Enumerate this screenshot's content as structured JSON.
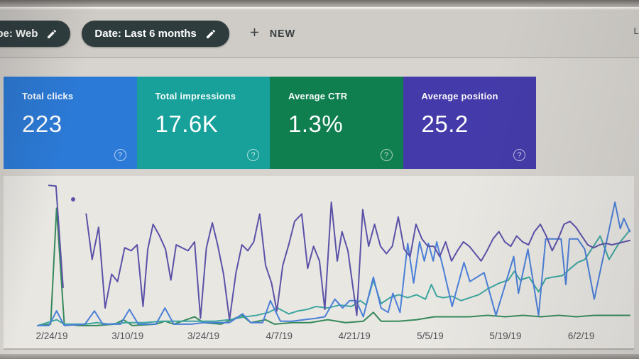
{
  "toolbar": {
    "chips": [
      {
        "label": "type: Web",
        "icon": "edit-icon",
        "clipped_left": true
      },
      {
        "label": "Date: Last 6 months",
        "icon": "edit-icon"
      }
    ],
    "new_button": {
      "label": "NEW",
      "icon": "add-icon"
    },
    "right_fragment": "La"
  },
  "summary_cards": [
    {
      "label": "Total clicks",
      "value": "223",
      "color": "#2b7ad7",
      "help_icon": "?"
    },
    {
      "label": "Total impressions",
      "value": "17.6K",
      "color": "#17a19a",
      "help_icon": "?"
    },
    {
      "label": "Average CTR",
      "value": "1.3%",
      "color": "#0f7f50",
      "help_icon": "?"
    },
    {
      "label": "Average position",
      "value": "25.2",
      "color": "#443aa9",
      "help_icon": "?"
    }
  ],
  "icons": {
    "edit-icon": "pencil glyph on filter chips",
    "add-icon": "plus glyph on NEW button",
    "help-icon": "circled question mark on each metric card"
  },
  "chart_data": {
    "type": "line",
    "title": "",
    "x_axis_labels": [
      {
        "text": "2/24/19",
        "x": 2.4
      },
      {
        "text": "3/10/19",
        "x": 15.2
      },
      {
        "text": "3/24/19",
        "x": 28.0
      },
      {
        "text": "4/7/19",
        "x": 40.8
      },
      {
        "text": "4/21/19",
        "x": 53.5
      },
      {
        "text": "5/5/19",
        "x": 66.3
      },
      {
        "text": "5/19/19",
        "x": 79.0
      },
      {
        "text": "6/2/19",
        "x": 91.8
      }
    ],
    "y_scale_note": "no y-axis shown on screen; point values are percent of plot height measured from top (0 = top, 100 = baseline), each series independently normalized as rendered",
    "grid": "off",
    "legend": "colors match the four summary cards",
    "series": [
      {
        "id": "ctr",
        "name": "Average CTR",
        "color": "#35895c",
        "segments": [
          [
            [
              0,
              99
            ],
            [
              2.2,
              98
            ],
            [
              3.2,
              19
            ],
            [
              4.5,
              98
            ],
            [
              7,
              99
            ],
            [
              10,
              99
            ],
            [
              13,
              98
            ],
            [
              14.5,
              95
            ],
            [
              16,
              99
            ],
            [
              20,
              98
            ],
            [
              21.5,
              96
            ],
            [
              23,
              98
            ],
            [
              26.5,
              93
            ],
            [
              28,
              97
            ],
            [
              31,
              98
            ],
            [
              34.5,
              92
            ],
            [
              36,
              97
            ],
            [
              38.5,
              95
            ],
            [
              40,
              98
            ],
            [
              43,
              97
            ],
            [
              46,
              97
            ],
            [
              49,
              95
            ],
            [
              52,
              97
            ],
            [
              55,
              96
            ],
            [
              56.7,
              90
            ],
            [
              58,
              96
            ],
            [
              61,
              96
            ],
            [
              64,
              95
            ],
            [
              67,
              93
            ],
            [
              70,
              93
            ],
            [
              73,
              93
            ],
            [
              76,
              92
            ],
            [
              79,
              93
            ],
            [
              82,
              92
            ],
            [
              85,
              93
            ],
            [
              88,
              92
            ],
            [
              91,
              93
            ],
            [
              94,
              92
            ],
            [
              97,
              92
            ],
            [
              100,
              92
            ]
          ]
        ],
        "dots": []
      },
      {
        "id": "impressions",
        "name": "Total impressions",
        "color": "#3da5a0",
        "segments": [
          [
            [
              0,
              99
            ],
            [
              3.2,
              95
            ],
            [
              4.5,
              98
            ],
            [
              8,
              98
            ],
            [
              10,
              97
            ],
            [
              12,
              98
            ],
            [
              15,
              97
            ],
            [
              18,
              97
            ],
            [
              21,
              96
            ],
            [
              24,
              96
            ],
            [
              26,
              96
            ],
            [
              28,
              96
            ],
            [
              30,
              96
            ],
            [
              32.4,
              95
            ],
            [
              35,
              93
            ],
            [
              37,
              92
            ],
            [
              39,
              90
            ],
            [
              40.5,
              87
            ],
            [
              42.4,
              91
            ],
            [
              44,
              89
            ],
            [
              45.5,
              88
            ],
            [
              47,
              86
            ],
            [
              49,
              87
            ],
            [
              51,
              85
            ],
            [
              53,
              86
            ],
            [
              54.5,
              82
            ],
            [
              55.5,
              85
            ],
            [
              56.7,
              68
            ],
            [
              58,
              84
            ],
            [
              59.5,
              80
            ],
            [
              61,
              78
            ],
            [
              62.5,
              80
            ],
            [
              64,
              78
            ],
            [
              65.5,
              81
            ],
            [
              66.5,
              71
            ],
            [
              67.4,
              79
            ],
            [
              68.5,
              80
            ],
            [
              70,
              79
            ],
            [
              71.5,
              82
            ],
            [
              73,
              80
            ],
            [
              74.5,
              78
            ],
            [
              76,
              74
            ],
            [
              78,
              70
            ],
            [
              79.5,
              68
            ],
            [
              80.5,
              62
            ],
            [
              81.5,
              68
            ],
            [
              83,
              66
            ],
            [
              84.6,
              76
            ],
            [
              85.8,
              67
            ],
            [
              87,
              66
            ],
            [
              88.6,
              65
            ],
            [
              90,
              60
            ],
            [
              91.2,
              56
            ],
            [
              92.4,
              54
            ],
            [
              95,
              38
            ],
            [
              96.5,
              54
            ],
            [
              98,
              44
            ],
            [
              100,
              34
            ]
          ]
        ],
        "dots": []
      },
      {
        "id": "clicks",
        "name": "Total clicks",
        "color": "#4a7fd8",
        "segments": [
          [
            [
              0,
              99
            ],
            [
              1.9,
              99
            ],
            [
              3.2,
              89
            ],
            [
              4.5,
              99
            ],
            [
              8,
              98
            ],
            [
              9.6,
              89
            ],
            [
              11,
              98
            ],
            [
              14,
              98
            ],
            [
              15.5,
              88
            ],
            [
              17,
              98
            ],
            [
              20,
              98
            ],
            [
              21.5,
              87
            ],
            [
              23,
              98
            ],
            [
              26,
              98
            ],
            [
              28,
              97
            ],
            [
              30,
              97
            ],
            [
              32.4,
              97
            ],
            [
              34.6,
              91
            ],
            [
              36,
              97
            ],
            [
              38,
              97
            ],
            [
              39.3,
              82
            ],
            [
              41,
              96
            ],
            [
              43,
              96
            ],
            [
              45,
              95
            ],
            [
              47,
              94
            ],
            [
              48.5,
              93
            ],
            [
              50.2,
              81
            ],
            [
              51.5,
              87
            ],
            [
              52.7,
              82
            ],
            [
              53.8,
              82
            ],
            [
              55,
              93
            ],
            [
              56.7,
              66
            ],
            [
              58,
              87
            ],
            [
              59.2,
              90
            ],
            [
              60,
              77
            ],
            [
              61.2,
              90
            ],
            [
              62.5,
              43
            ],
            [
              63.5,
              70
            ],
            [
              64.5,
              42
            ],
            [
              65.3,
              55
            ],
            [
              66,
              43
            ],
            [
              66.8,
              55
            ],
            [
              67.4,
              42
            ],
            [
              68.5,
              60
            ],
            [
              70,
              86
            ],
            [
              72,
              56
            ],
            [
              73,
              69
            ],
            [
              75.4,
              63
            ],
            [
              77.4,
              92
            ],
            [
              80.4,
              52
            ],
            [
              81.2,
              77
            ],
            [
              82.8,
              47
            ],
            [
              84.6,
              92
            ],
            [
              85.8,
              40
            ],
            [
              88.4,
              40
            ],
            [
              89.2,
              71
            ],
            [
              89.8,
              40
            ],
            [
              91.2,
              40
            ],
            [
              92.4,
              47
            ],
            [
              94,
              81
            ],
            [
              97.5,
              15
            ],
            [
              98.4,
              33
            ],
            [
              99,
              26
            ],
            [
              100,
              35
            ]
          ]
        ],
        "dots": []
      },
      {
        "id": "position",
        "name": "Average position",
        "color": "#5b52a8",
        "segments": [
          [
            [
              1.9,
              3.5
            ],
            [
              3.1,
              4
            ],
            [
              4.3,
              73
            ]
          ],
          [
            [
              8.2,
              23
            ],
            [
              9.2,
              54
            ],
            [
              10.3,
              32
            ],
            [
              11.4,
              87
            ],
            [
              12.5,
              64
            ],
            [
              13.5,
              69
            ],
            [
              14.7,
              46
            ],
            [
              15.8,
              48
            ],
            [
              16.8,
              44
            ],
            [
              17.8,
              86
            ],
            [
              18.6,
              47
            ],
            [
              19.5,
              30
            ],
            [
              20.6,
              38
            ],
            [
              21.6,
              47
            ],
            [
              22.5,
              68
            ],
            [
              23.4,
              44
            ],
            [
              24.4,
              46
            ],
            [
              25.4,
              48
            ],
            [
              26.5,
              42
            ],
            [
              27.5,
              94
            ],
            [
              28.5,
              46
            ],
            [
              29.5,
              29
            ],
            [
              30.4,
              44
            ],
            [
              31.4,
              64
            ],
            [
              32.4,
              95
            ],
            [
              33.5,
              63
            ],
            [
              34.5,
              44
            ],
            [
              35.5,
              48
            ],
            [
              36.5,
              42
            ],
            [
              37.5,
              23
            ],
            [
              38.5,
              58
            ],
            [
              39.5,
              70
            ],
            [
              40.4,
              89
            ],
            [
              41.4,
              58
            ],
            [
              42.4,
              44
            ],
            [
              43.4,
              28
            ],
            [
              44.6,
              23
            ],
            [
              45.6,
              60
            ],
            [
              46.6,
              45
            ],
            [
              47.6,
              55
            ],
            [
              48.5,
              88
            ],
            [
              49.6,
              15
            ],
            [
              50.6,
              55
            ],
            [
              51.4,
              35
            ],
            [
              52.4,
              48
            ],
            [
              53.9,
              92
            ],
            [
              54.9,
              20
            ],
            [
              55.9,
              45
            ],
            [
              56.9,
              30
            ],
            [
              57.9,
              45
            ],
            [
              58.9,
              50
            ],
            [
              59.9,
              45
            ],
            [
              60.9,
              25
            ],
            [
              61.9,
              47
            ],
            [
              62.9,
              52
            ],
            [
              63.9,
              30
            ],
            [
              64.9,
              40
            ],
            [
              65.9,
              45
            ],
            [
              66.9,
              45
            ],
            [
              67.9,
              52
            ],
            [
              68.9,
              42
            ],
            [
              69.9,
              55
            ],
            [
              70.9,
              48
            ],
            [
              71.9,
              42
            ],
            [
              72.9,
              45
            ],
            [
              73.9,
              50
            ],
            [
              74.9,
              55
            ],
            [
              75.9,
              48
            ],
            [
              76.9,
              40
            ],
            [
              77.9,
              35
            ],
            [
              78.9,
              42
            ],
            [
              79.9,
              45
            ],
            [
              80.9,
              38
            ],
            [
              81.9,
              42
            ],
            [
              82.9,
              44
            ],
            [
              83.9,
              35
            ],
            [
              84.9,
              30
            ],
            [
              85.9,
              38
            ],
            [
              86.9,
              48
            ],
            [
              87.9,
              40
            ],
            [
              88.9,
              30
            ],
            [
              89.9,
              28
            ],
            [
              90.9,
              32
            ],
            [
              91.9,
              38
            ],
            [
              92.9,
              44
            ],
            [
              93.9,
              46
            ],
            [
              94.9,
              44
            ],
            [
              96,
              43
            ],
            [
              97,
              44
            ],
            [
              98,
              43
            ],
            [
              99,
              42
            ],
            [
              100,
              41
            ]
          ]
        ],
        "dots": [
          [
            6.0,
            13
          ]
        ]
      }
    ]
  }
}
